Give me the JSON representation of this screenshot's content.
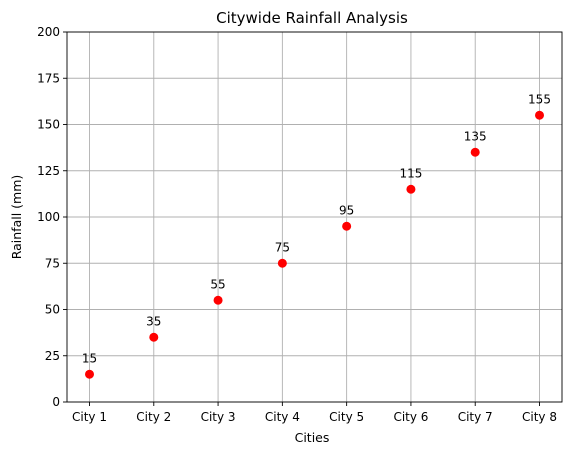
{
  "chart_data": {
    "type": "scatter",
    "title": "Citywide Rainfall Analysis",
    "xlabel": "Cities",
    "ylabel": "Rainfall (mm)",
    "categories": [
      "City 1",
      "City 2",
      "City 3",
      "City 4",
      "City 5",
      "City 6",
      "City 7",
      "City 8"
    ],
    "values": [
      15,
      35,
      55,
      75,
      95,
      115,
      135,
      155
    ],
    "data_labels": [
      "15",
      "35",
      "55",
      "75",
      "95",
      "115",
      "135",
      "155"
    ],
    "ylim": [
      0,
      200
    ],
    "yticks": [
      0,
      25,
      50,
      75,
      100,
      125,
      150,
      175,
      200
    ],
    "ytick_labels": [
      "0",
      "25",
      "50",
      "75",
      "100",
      "125",
      "150",
      "175",
      "200"
    ],
    "grid": true,
    "marker_color": "#ff0000"
  }
}
